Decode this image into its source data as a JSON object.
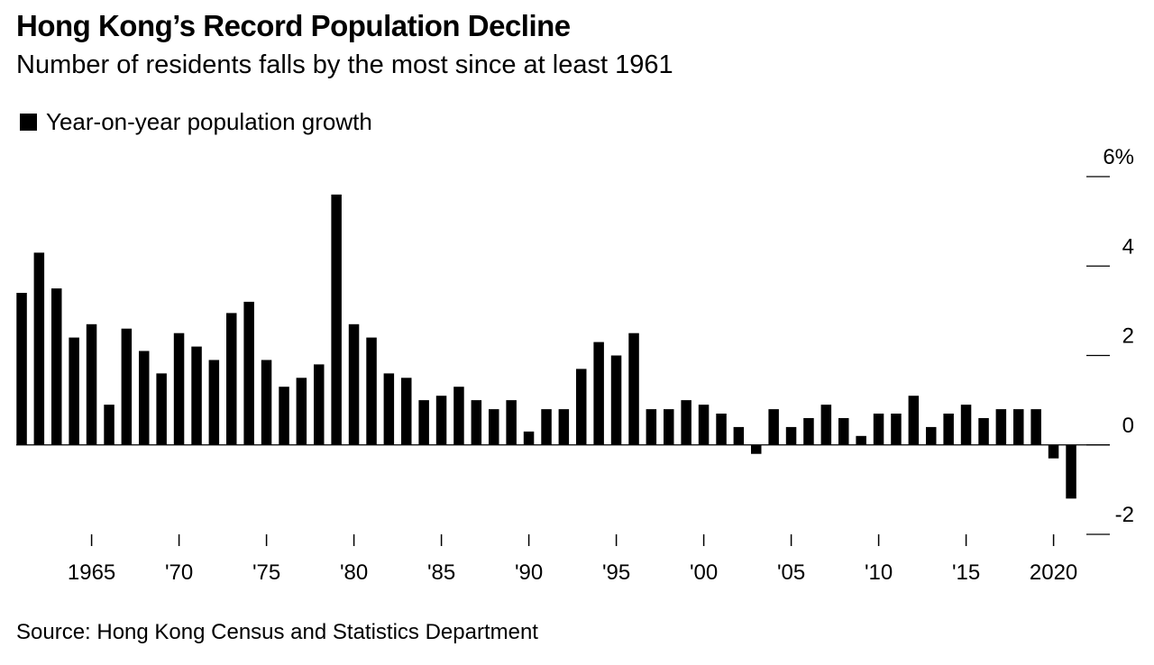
{
  "title": "Hong Kong’s Record Population Decline",
  "subtitle": "Number of residents falls by the most since at least 1961",
  "legend": {
    "label": "Year-on-year population growth",
    "color": "#000000"
  },
  "source": "Source: Hong Kong Census and Statistics Department",
  "chart_data": {
    "type": "bar",
    "x": [
      1961,
      1962,
      1963,
      1964,
      1965,
      1966,
      1967,
      1968,
      1969,
      1970,
      1971,
      1972,
      1973,
      1974,
      1975,
      1976,
      1977,
      1978,
      1979,
      1980,
      1981,
      1982,
      1983,
      1984,
      1985,
      1986,
      1987,
      1988,
      1989,
      1990,
      1991,
      1992,
      1993,
      1994,
      1995,
      1996,
      1997,
      1998,
      1999,
      2000,
      2001,
      2002,
      2003,
      2004,
      2005,
      2006,
      2007,
      2008,
      2009,
      2010,
      2011,
      2012,
      2013,
      2014,
      2015,
      2016,
      2017,
      2018,
      2019,
      2020,
      2021
    ],
    "series": [
      {
        "name": "Year-on-year population growth",
        "values": [
          3.4,
          4.3,
          3.5,
          2.4,
          2.7,
          0.9,
          2.6,
          2.1,
          1.6,
          2.5,
          2.2,
          1.9,
          2.95,
          3.2,
          1.9,
          1.3,
          1.5,
          1.8,
          5.6,
          2.7,
          2.4,
          1.6,
          1.5,
          1.0,
          1.1,
          1.3,
          1.0,
          0.8,
          1.0,
          0.3,
          0.8,
          0.8,
          1.7,
          2.3,
          2.0,
          2.5,
          0.8,
          0.8,
          1.0,
          0.9,
          0.7,
          0.4,
          -0.2,
          0.8,
          0.4,
          0.6,
          0.9,
          0.6,
          0.2,
          0.7,
          0.7,
          1.1,
          0.4,
          0.7,
          0.9,
          0.6,
          0.8,
          0.8,
          0.8,
          -0.3,
          -1.2
        ],
        "color": "#000000"
      }
    ],
    "y_unit": "%",
    "ylim": [
      -2,
      6
    ],
    "y_ticks": [
      {
        "value": 6,
        "label": "6%"
      },
      {
        "value": 4,
        "label": "4"
      },
      {
        "value": 2,
        "label": "2"
      },
      {
        "value": 0,
        "label": "0"
      },
      {
        "value": -2,
        "label": "-2"
      }
    ],
    "x_ticks": [
      {
        "value": 1965,
        "label": "1965"
      },
      {
        "value": 1970,
        "label": "'70"
      },
      {
        "value": 1975,
        "label": "'75"
      },
      {
        "value": 1980,
        "label": "'80"
      },
      {
        "value": 1985,
        "label": "'85"
      },
      {
        "value": 1990,
        "label": "'90"
      },
      {
        "value": 1995,
        "label": "'95"
      },
      {
        "value": 2000,
        "label": "'00"
      },
      {
        "value": 2005,
        "label": "'05"
      },
      {
        "value": 2010,
        "label": "'10"
      },
      {
        "value": 2015,
        "label": "'15"
      },
      {
        "value": 2020,
        "label": "2020"
      }
    ],
    "zero_line": true,
    "grid": false,
    "y_axis_position": "right",
    "legend_position": "top-left"
  }
}
